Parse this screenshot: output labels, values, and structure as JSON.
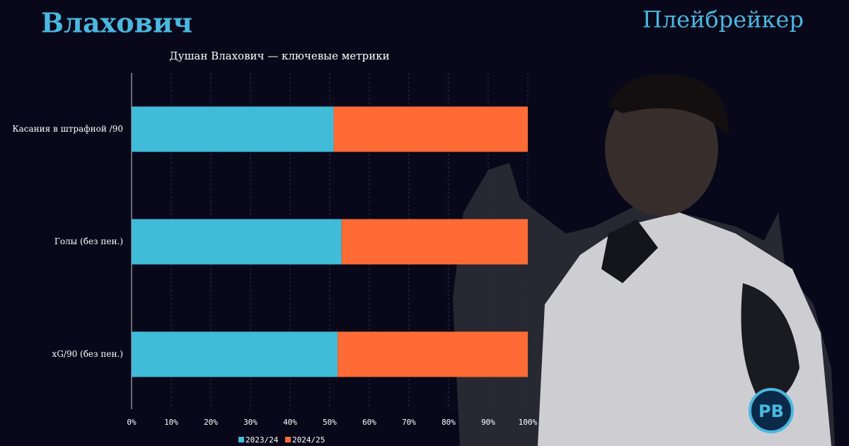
{
  "page": {
    "title": "Влахович",
    "brand": "Плейбрейкер",
    "logo": "PB"
  },
  "chart_data": {
    "type": "bar",
    "orientation": "horizontal",
    "stacked": true,
    "title": "Душан Влахович — ключевые метрики",
    "categories": [
      "Касания в штрафной /90",
      "Голы (без пен.)",
      "xG/90 (без пен.)"
    ],
    "series": [
      {
        "name": "2023/24",
        "color": "#40bcd8",
        "values": [
          51,
          53,
          52
        ]
      },
      {
        "name": "2024/25",
        "color": "#ff6b35",
        "values": [
          49,
          47,
          48
        ]
      }
    ],
    "xlim": [
      0,
      100
    ],
    "xticks": [
      {
        "value": 0,
        "label": "0%"
      },
      {
        "value": 10,
        "label": "10%"
      },
      {
        "value": 20,
        "label": "20%"
      },
      {
        "value": 30,
        "label": "30%"
      },
      {
        "value": 40,
        "label": "40%"
      },
      {
        "value": 50,
        "label": "50%"
      },
      {
        "value": 60,
        "label": "60%"
      },
      {
        "value": 70,
        "label": "70%"
      },
      {
        "value": 80,
        "label": "80%"
      },
      {
        "value": 90,
        "label": "90%"
      },
      {
        "value": 100,
        "label": "100%"
      }
    ],
    "grid": true,
    "legend": "bottom"
  }
}
